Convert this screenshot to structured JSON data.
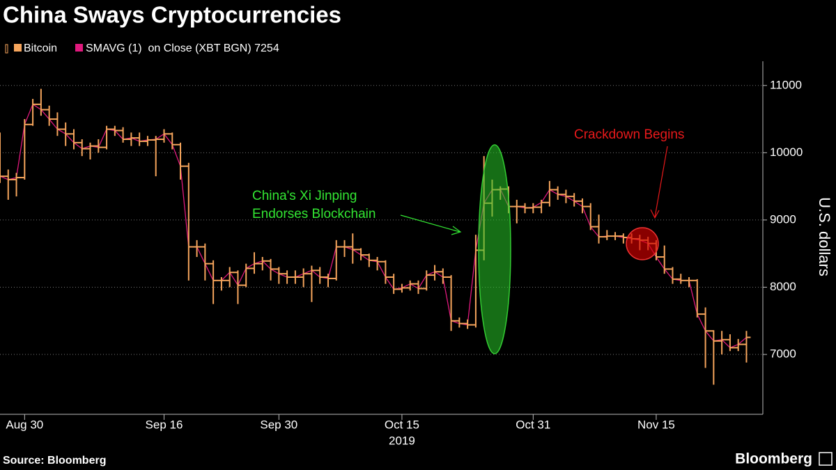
{
  "chart_data": {
    "type": "ohlc",
    "title": "China Sways Cryptocurrencies",
    "source": "Source: Bloomberg",
    "brand": "Bloomberg",
    "y_label": "U.S. dollars",
    "x_year_label": "2019",
    "x": [
      "2019-08-27",
      "2019-08-28",
      "2019-08-29",
      "2019-08-30",
      "2019-08-31",
      "2019-09-01",
      "2019-09-02",
      "2019-09-03",
      "2019-09-04",
      "2019-09-05",
      "2019-09-06",
      "2019-09-07",
      "2019-09-08",
      "2019-09-09",
      "2019-09-10",
      "2019-09-11",
      "2019-09-12",
      "2019-09-13",
      "2019-09-14",
      "2019-09-15",
      "2019-09-16",
      "2019-09-17",
      "2019-09-18",
      "2019-09-19",
      "2019-09-20",
      "2019-09-21",
      "2019-09-22",
      "2019-09-23",
      "2019-09-24",
      "2019-09-25",
      "2019-09-26",
      "2019-09-27",
      "2019-09-28",
      "2019-09-29",
      "2019-09-30",
      "2019-10-01",
      "2019-10-02",
      "2019-10-03",
      "2019-10-04",
      "2019-10-05",
      "2019-10-06",
      "2019-10-07",
      "2019-10-08",
      "2019-10-09",
      "2019-10-10",
      "2019-10-11",
      "2019-10-12",
      "2019-10-13",
      "2019-10-14",
      "2019-10-15",
      "2019-10-16",
      "2019-10-17",
      "2019-10-18",
      "2019-10-19",
      "2019-10-20",
      "2019-10-21",
      "2019-10-22",
      "2019-10-23",
      "2019-10-24",
      "2019-10-25",
      "2019-10-26",
      "2019-10-27",
      "2019-10-28",
      "2019-10-29",
      "2019-10-30",
      "2019-10-31",
      "2019-11-01",
      "2019-11-02",
      "2019-11-03",
      "2019-11-04",
      "2019-11-05",
      "2019-11-06",
      "2019-11-07",
      "2019-11-08",
      "2019-11-09",
      "2019-11-10",
      "2019-11-11",
      "2019-11-12",
      "2019-11-13",
      "2019-11-14",
      "2019-11-15",
      "2019-11-16",
      "2019-11-17",
      "2019-11-18",
      "2019-11-19",
      "2019-11-20",
      "2019-11-21",
      "2019-11-22",
      "2019-11-23",
      "2019-11-24",
      "2019-11-25",
      "2019-11-26"
    ],
    "series": [
      {
        "name": "Bitcoin",
        "color": "#f6a55c",
        "open": [
          10200,
          9650,
          9600,
          9630,
          10420,
          10720,
          10640,
          10500,
          10350,
          10280,
          10150,
          10060,
          10100,
          10080,
          10350,
          10330,
          10200,
          10220,
          10170,
          10190,
          10200,
          10280,
          10120,
          9800,
          8600,
          8600,
          8350,
          8100,
          8100,
          8220,
          8030,
          8280,
          8350,
          8390,
          8270,
          8200,
          8150,
          8150,
          8200,
          8250,
          8150,
          8130,
          8600,
          8600,
          8560,
          8480,
          8400,
          8380,
          8150,
          7970,
          7990,
          8050,
          7980,
          8180,
          8230,
          8150,
          7500,
          7460,
          7440,
          8550,
          9250,
          9450,
          9460,
          9200,
          9200,
          9180,
          9190,
          9260,
          9450,
          9380,
          9350,
          9280,
          9200,
          8900,
          8750,
          8760,
          8760,
          8740,
          8720,
          8700,
          8650,
          8450,
          8270,
          8120,
          8100,
          8100,
          7600,
          7350,
          7200,
          7220,
          7100,
          7150
        ],
        "high": [
          10300,
          9750,
          9700,
          10500,
          10800,
          10950,
          10700,
          10600,
          10450,
          10350,
          10200,
          10150,
          10200,
          10400,
          10400,
          10380,
          10300,
          10300,
          10250,
          10250,
          10350,
          10300,
          10150,
          9850,
          8700,
          8650,
          8400,
          8150,
          8300,
          8250,
          8350,
          8520,
          8450,
          8420,
          8300,
          8250,
          8250,
          8280,
          8320,
          8300,
          8200,
          8700,
          8700,
          8800,
          8580,
          8500,
          8450,
          8400,
          8200,
          8050,
          8100,
          8100,
          8250,
          8330,
          8280,
          8180,
          7550,
          7520,
          8780,
          9950,
          9600,
          9500,
          9500,
          9300,
          9250,
          9250,
          9300,
          9580,
          9500,
          9450,
          9400,
          9320,
          9250,
          9080,
          8850,
          8820,
          8800,
          8800,
          8780,
          8750,
          8700,
          8620,
          8300,
          8200,
          8150,
          8120,
          7700,
          7360,
          7350,
          7300,
          7230,
          7350
        ],
        "low": [
          9550,
          9300,
          9350,
          9600,
          10400,
          10550,
          10400,
          10250,
          10100,
          10050,
          9950,
          9900,
          10000,
          10050,
          10250,
          10150,
          10100,
          10100,
          10100,
          9650,
          10150,
          10050,
          9600,
          8100,
          8450,
          8100,
          7750,
          7950,
          8000,
          7750,
          8000,
          8200,
          8250,
          8100,
          8050,
          8050,
          8050,
          8000,
          7780,
          8050,
          8000,
          8100,
          8450,
          8350,
          8400,
          8300,
          8250,
          8050,
          7900,
          7920,
          7950,
          7900,
          7950,
          8100,
          8050,
          7350,
          7400,
          7380,
          7400,
          8400,
          9050,
          9300,
          9100,
          8950,
          9100,
          9100,
          9100,
          9200,
          9300,
          9250,
          9200,
          9100,
          8850,
          8650,
          8700,
          8700,
          8650,
          8650,
          8550,
          8550,
          8400,
          8200,
          8050,
          8050,
          8000,
          7550,
          6800,
          6550,
          7000,
          7050,
          7050,
          6880
        ],
        "close": [
          9650,
          9600,
          9630,
          10420,
          10720,
          10640,
          10500,
          10350,
          10280,
          10150,
          10060,
          10100,
          10080,
          10350,
          10330,
          10200,
          10220,
          10170,
          10190,
          10200,
          10280,
          10120,
          9800,
          8600,
          8600,
          8350,
          8100,
          8100,
          8220,
          8030,
          8280,
          8350,
          8390,
          8270,
          8200,
          8150,
          8150,
          8200,
          8250,
          8150,
          8130,
          8600,
          8600,
          8560,
          8480,
          8400,
          8380,
          8150,
          7970,
          7990,
          8050,
          7980,
          8180,
          8230,
          8150,
          7500,
          7460,
          7440,
          8550,
          9250,
          9450,
          9460,
          9200,
          9200,
          9180,
          9190,
          9260,
          9450,
          9380,
          9350,
          9280,
          9200,
          8900,
          8750,
          8760,
          8760,
          8740,
          8720,
          8700,
          8650,
          8450,
          8270,
          8120,
          8100,
          8100,
          7600,
          7350,
          7200,
          7220,
          7100,
          7150,
          7254
        ]
      },
      {
        "name": "SMAVG (1)  on Close (XBT BGN) 7254",
        "color": "#e0197d",
        "values": [
          9650,
          9600,
          9630,
          10420,
          10720,
          10640,
          10500,
          10350,
          10280,
          10150,
          10060,
          10100,
          10080,
          10350,
          10330,
          10200,
          10220,
          10170,
          10190,
          10200,
          10280,
          10120,
          9800,
          8600,
          8600,
          8350,
          8100,
          8100,
          8220,
          8030,
          8280,
          8350,
          8390,
          8270,
          8200,
          8150,
          8150,
          8200,
          8250,
          8150,
          8130,
          8600,
          8600,
          8560,
          8480,
          8400,
          8380,
          8150,
          7970,
          7990,
          8050,
          7980,
          8180,
          8230,
          8150,
          7500,
          7460,
          7440,
          8550,
          9250,
          9450,
          9460,
          9200,
          9200,
          9180,
          9190,
          9260,
          9450,
          9380,
          9350,
          9280,
          9200,
          8900,
          8750,
          8760,
          8760,
          8740,
          8720,
          8700,
          8650,
          8450,
          8270,
          8120,
          8100,
          8100,
          7600,
          7350,
          7200,
          7220,
          7100,
          7150,
          7254
        ]
      }
    ],
    "xlim": [
      "2019-08-27",
      "2019-11-28"
    ],
    "xticks": [
      {
        "value": "2019-08-30",
        "label": "Aug 30"
      },
      {
        "value": "2019-09-16",
        "label": "Sep 16"
      },
      {
        "value": "2019-09-30",
        "label": "Sep 30"
      },
      {
        "value": "2019-10-15",
        "label": "Oct 15"
      },
      {
        "value": "2019-10-31",
        "label": "Oct 31"
      },
      {
        "value": "2019-11-15",
        "label": "Nov 15"
      }
    ],
    "ylim": [
      6110,
      11360
    ],
    "yticks": [
      7000,
      8000,
      9000,
      10000,
      11000
    ],
    "grid": true,
    "annotations": [
      {
        "lines": [
          "China's Xi Jinping",
          "Endorses Blockchain"
        ],
        "color": "#33e633"
      },
      {
        "lines": [
          "Crackdown Begins"
        ],
        "color": "#e8191b"
      }
    ]
  }
}
